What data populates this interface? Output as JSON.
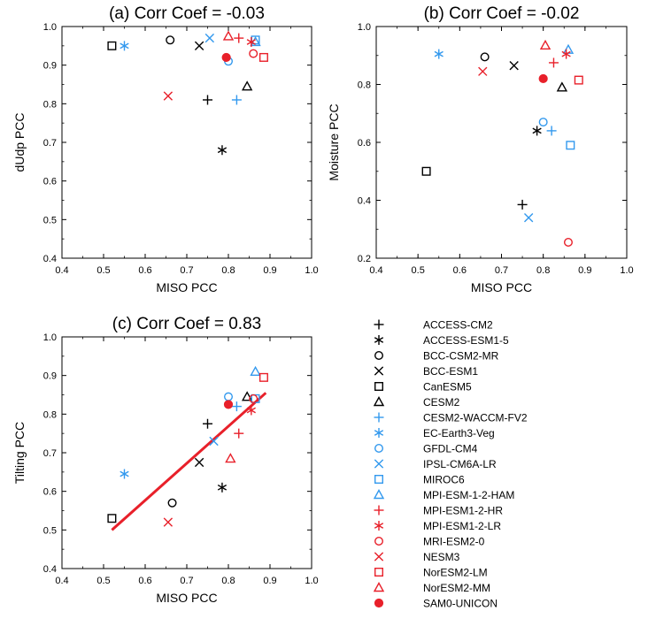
{
  "models": [
    {
      "name": "ACCESS-CM2",
      "marker": "plus",
      "color": "#000000"
    },
    {
      "name": "ACCESS-ESM1-5",
      "marker": "asterisk",
      "color": "#000000"
    },
    {
      "name": "BCC-CSM2-MR",
      "marker": "circle",
      "color": "#000000"
    },
    {
      "name": "BCC-ESM1",
      "marker": "cross",
      "color": "#000000"
    },
    {
      "name": "CanESM5",
      "marker": "square",
      "color": "#000000"
    },
    {
      "name": "CESM2",
      "marker": "triangle",
      "color": "#000000"
    },
    {
      "name": "CESM2-WACCM-FV2",
      "marker": "plus",
      "color": "#3399ee"
    },
    {
      "name": "EC-Earth3-Veg",
      "marker": "asterisk",
      "color": "#3399ee"
    },
    {
      "name": "GFDL-CM4",
      "marker": "circle",
      "color": "#3399ee"
    },
    {
      "name": "IPSL-CM6A-LR",
      "marker": "cross",
      "color": "#3399ee"
    },
    {
      "name": "MIROC6",
      "marker": "square",
      "color": "#3399ee"
    },
    {
      "name": "MPI-ESM-1-2-HAM",
      "marker": "triangle",
      "color": "#3399ee"
    },
    {
      "name": "MPI-ESM1-2-HR",
      "marker": "plus",
      "color": "#e8202a"
    },
    {
      "name": "MPI-ESM1-2-LR",
      "marker": "asterisk",
      "color": "#e8202a"
    },
    {
      "name": "MRI-ESM2-0",
      "marker": "circle",
      "color": "#e8202a"
    },
    {
      "name": "NESM3",
      "marker": "cross",
      "color": "#e8202a"
    },
    {
      "name": "NorESM2-LM",
      "marker": "square",
      "color": "#e8202a"
    },
    {
      "name": "NorESM2-MM",
      "marker": "triangle",
      "color": "#e8202a"
    },
    {
      "name": "SAM0-UNICON",
      "marker": "filled-circle",
      "color": "#e8202a"
    }
  ],
  "chart_data": [
    {
      "type": "scatter",
      "title": "(a) Corr Coef = -0.03",
      "xlabel": "MISO PCC",
      "ylabel": "dUdp PCC",
      "xlim": [
        0.4,
        1.0
      ],
      "ylim": [
        0.4,
        1.0
      ],
      "xticks": [
        "0.4",
        "0.5",
        "0.6",
        "0.7",
        "0.8",
        "0.9",
        "1.0"
      ],
      "yticks": [
        "0.4",
        "0.5",
        "0.6",
        "0.7",
        "0.8",
        "0.9",
        "1.0"
      ],
      "x": [
        0.75,
        0.785,
        0.66,
        0.73,
        0.52,
        0.845,
        0.82,
        0.55,
        0.8,
        0.755,
        0.865,
        0.865,
        0.825,
        0.855,
        0.86,
        0.655,
        0.885,
        0.8,
        0.795
      ],
      "y": [
        0.81,
        0.68,
        0.965,
        0.95,
        0.95,
        0.845,
        0.81,
        0.95,
        0.91,
        0.97,
        0.965,
        0.96,
        0.97,
        0.96,
        0.93,
        0.82,
        0.92,
        0.975,
        0.92
      ]
    },
    {
      "type": "scatter",
      "title": "(b) Corr Coef = -0.02",
      "xlabel": "MISO PCC",
      "ylabel": "Moisture PCC",
      "xlim": [
        0.4,
        1.0
      ],
      "ylim": [
        0.2,
        1.0
      ],
      "xticks": [
        "0.4",
        "0.5",
        "0.6",
        "0.7",
        "0.8",
        "0.9",
        "1.0"
      ],
      "yticks": [
        "0.2",
        "0.4",
        "0.6",
        "0.8",
        "1.0"
      ],
      "x": [
        0.75,
        0.785,
        0.66,
        0.73,
        0.52,
        0.845,
        0.82,
        0.55,
        0.8,
        0.765,
        0.865,
        0.86,
        0.825,
        0.855,
        0.86,
        0.655,
        0.885,
        0.805,
        0.8
      ],
      "y": [
        0.385,
        0.64,
        0.895,
        0.865,
        0.5,
        0.79,
        0.64,
        0.905,
        0.67,
        0.34,
        0.59,
        0.92,
        0.875,
        0.905,
        0.255,
        0.845,
        0.815,
        0.935,
        0.82
      ]
    },
    {
      "type": "scatter",
      "title": "(c) Corr Coef =  0.83",
      "xlabel": "MISO PCC",
      "ylabel": "Tilting PCC",
      "xlim": [
        0.4,
        1.0
      ],
      "ylim": [
        0.4,
        1.0
      ],
      "xticks": [
        "0.4",
        "0.5",
        "0.6",
        "0.7",
        "0.8",
        "0.9",
        "1.0"
      ],
      "yticks": [
        "0.4",
        "0.5",
        "0.6",
        "0.7",
        "0.8",
        "0.9",
        "1.0"
      ],
      "x": [
        0.75,
        0.785,
        0.665,
        0.73,
        0.52,
        0.845,
        0.82,
        0.55,
        0.8,
        0.765,
        0.865,
        0.865,
        0.825,
        0.855,
        0.86,
        0.655,
        0.885,
        0.805,
        0.8
      ],
      "y": [
        0.775,
        0.61,
        0.57,
        0.675,
        0.53,
        0.845,
        0.82,
        0.645,
        0.845,
        0.73,
        0.84,
        0.91,
        0.75,
        0.81,
        0.84,
        0.52,
        0.895,
        0.685,
        0.825
      ],
      "fit_line": {
        "x": [
          0.52,
          0.89
        ],
        "y": [
          0.5,
          0.855
        ],
        "color": "#e8202a"
      }
    }
  ]
}
